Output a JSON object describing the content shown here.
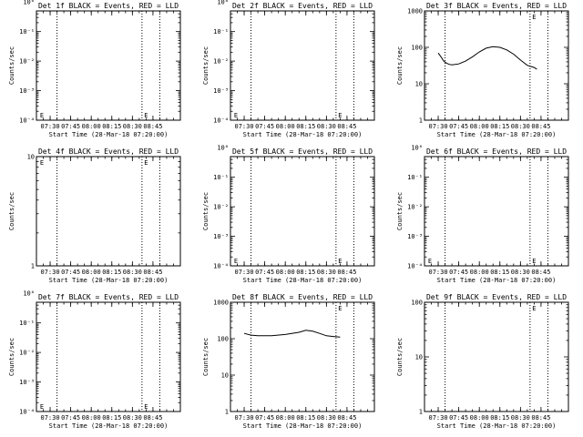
{
  "chart_data": [
    {
      "type": "line",
      "title": "Det 1f BLACK = Events, RED = LLD",
      "xlabel": "Start Time (28-Mar-18 07:20:00)",
      "ylabel": "Counts/sec",
      "scale": "log",
      "ylim": [
        0.5,
        0.0001
      ],
      "yticks": [
        {
          "v": 0.0001,
          "label": "10⁻⁴"
        },
        {
          "v": 0.001,
          "label": "10⁻³"
        },
        {
          "v": 0.01,
          "label": "10⁻²"
        },
        {
          "v": 0.1,
          "label": "10⁻¹"
        },
        {
          "v": 1,
          "label": "10⁰"
        }
      ],
      "xticks": [
        "07:30",
        "07:45",
        "08:00",
        "08:15",
        "08:30",
        "08:45"
      ],
      "xlim": [
        0,
        105
      ],
      "xtick_values": [
        10,
        25,
        40,
        55,
        70,
        85
      ],
      "dotted_lines": [
        15,
        77,
        90
      ],
      "markers": [
        {
          "x": 4,
          "label": "E"
        },
        {
          "x": 80,
          "label": "E"
        }
      ],
      "series": []
    },
    {
      "type": "line",
      "title": "Det 2f BLACK = Events, RED = LLD",
      "xlabel": "Start Time (28-Mar-18 07:20:00)",
      "ylabel": "Counts/sec",
      "scale": "log",
      "ylim": [
        0.5,
        0.0001
      ],
      "yticks": [
        {
          "v": 0.0001,
          "label": "10⁻⁴"
        },
        {
          "v": 0.001,
          "label": "10⁻³"
        },
        {
          "v": 0.01,
          "label": "10⁻²"
        },
        {
          "v": 0.1,
          "label": "10⁻¹"
        },
        {
          "v": 1,
          "label": "10⁰"
        }
      ],
      "xticks": [
        "07:30",
        "07:45",
        "08:00",
        "08:15",
        "08:30",
        "08:45"
      ],
      "xlim": [
        0,
        105
      ],
      "xtick_values": [
        10,
        25,
        40,
        55,
        70,
        85
      ],
      "dotted_lines": [
        15,
        77,
        90
      ],
      "markers": [
        {
          "x": 4,
          "label": "E"
        },
        {
          "x": 80,
          "label": "E"
        }
      ],
      "series": []
    },
    {
      "type": "line",
      "title": "Det 3f BLACK = Events, RED = LLD",
      "xlabel": "Start Time (28-Mar-18 07:20:00)",
      "ylabel": "Counts/sec",
      "scale": "log",
      "ylim": [
        1,
        1000
      ],
      "yticks": [
        {
          "v": 1000,
          "label": "1000"
        },
        {
          "v": 100,
          "label": "100"
        },
        {
          "v": 10,
          "label": "10"
        },
        {
          "v": 1,
          "label": "1"
        }
      ],
      "xticks": [
        "07:30",
        "07:45",
        "08:00",
        "08:15",
        "08:30",
        "08:45"
      ],
      "xlim": [
        0,
        105
      ],
      "xtick_values": [
        10,
        25,
        40,
        55,
        70,
        85
      ],
      "dotted_lines": [
        15,
        77,
        90
      ],
      "markers": [
        {
          "x": 80,
          "label": "E"
        }
      ],
      "series": [
        {
          "x": [
            10,
            12,
            14,
            16,
            18,
            20,
            25,
            30,
            35,
            40,
            45,
            50,
            55,
            60,
            65,
            70,
            75,
            80,
            82
          ],
          "y": [
            70,
            55,
            42,
            37,
            34,
            33,
            35,
            42,
            55,
            75,
            95,
            105,
            100,
            85,
            65,
            45,
            32,
            28,
            25
          ]
        }
      ]
    },
    {
      "type": "line",
      "title": "Det 4f BLACK = Events, RED = LLD",
      "xlabel": "Start Time (28-Mar-18 07:20:00)",
      "ylabel": "Counts/sec",
      "scale": "log",
      "ylim": [
        1,
        10
      ],
      "yticks": [
        {
          "v": 10,
          "label": "10"
        },
        {
          "v": 1,
          "label": "1"
        }
      ],
      "xticks": [
        "07:30",
        "07:45",
        "08:00",
        "08:15",
        "08:30",
        "08:45"
      ],
      "xlim": [
        0,
        105
      ],
      "xtick_values": [
        10,
        25,
        40,
        55,
        70,
        85
      ],
      "dotted_lines": [
        15,
        77,
        90
      ],
      "markers": [
        {
          "x": 4,
          "label": "E"
        },
        {
          "x": 80,
          "label": "E"
        }
      ],
      "series": []
    },
    {
      "type": "line",
      "title": "Det 5f BLACK = Events, RED = LLD",
      "xlabel": "Start Time (28-Mar-18 07:20:00)",
      "ylabel": "Counts/sec",
      "scale": "log",
      "ylim": [
        0.5,
        0.0001
      ],
      "yticks": [
        {
          "v": 0.0001,
          "label": "10⁻⁴"
        },
        {
          "v": 0.001,
          "label": "10⁻³"
        },
        {
          "v": 0.01,
          "label": "10⁻²"
        },
        {
          "v": 0.1,
          "label": "10⁻¹"
        },
        {
          "v": 1,
          "label": "10⁰"
        }
      ],
      "xticks": [
        "07:30",
        "07:45",
        "08:00",
        "08:15",
        "08:30",
        "08:45"
      ],
      "xlim": [
        0,
        105
      ],
      "xtick_values": [
        10,
        25,
        40,
        55,
        70,
        85
      ],
      "dotted_lines": [
        15,
        77,
        90
      ],
      "markers": [
        {
          "x": 4,
          "label": "E"
        },
        {
          "x": 80,
          "label": "E"
        }
      ],
      "series": []
    },
    {
      "type": "line",
      "title": "Det 6f BLACK = Events, RED = LLD",
      "xlabel": "Start Time (28-Mar-18 07:20:00)",
      "ylabel": "Counts/sec",
      "scale": "log",
      "ylim": [
        0.5,
        0.0001
      ],
      "yticks": [
        {
          "v": 0.0001,
          "label": "10⁻⁴"
        },
        {
          "v": 0.001,
          "label": "10⁻³"
        },
        {
          "v": 0.01,
          "label": "10⁻²"
        },
        {
          "v": 0.1,
          "label": "10⁻¹"
        },
        {
          "v": 1,
          "label": "10⁰"
        }
      ],
      "xticks": [
        "07:30",
        "07:45",
        "08:00",
        "08:15",
        "08:30",
        "08:45"
      ],
      "xlim": [
        0,
        105
      ],
      "xtick_values": [
        10,
        25,
        40,
        55,
        70,
        85
      ],
      "dotted_lines": [
        15,
        77,
        90
      ],
      "markers": [
        {
          "x": 4,
          "label": "E"
        },
        {
          "x": 80,
          "label": "E"
        }
      ],
      "series": []
    },
    {
      "type": "line",
      "title": "Det 7f BLACK = Events, RED = LLD",
      "xlabel": "Start Time (28-Mar-18 07:20:00)",
      "ylabel": "Counts/sec",
      "scale": "log",
      "ylim": [
        0.5,
        0.0001
      ],
      "yticks": [
        {
          "v": 0.0001,
          "label": "10⁻⁴"
        },
        {
          "v": 0.001,
          "label": "10⁻³"
        },
        {
          "v": 0.01,
          "label": "10⁻²"
        },
        {
          "v": 0.1,
          "label": "10⁻¹"
        },
        {
          "v": 1,
          "label": "10⁰"
        }
      ],
      "xticks": [
        "07:30",
        "07:45",
        "08:00",
        "08:15",
        "08:30",
        "08:45"
      ],
      "xlim": [
        0,
        105
      ],
      "xtick_values": [
        10,
        25,
        40,
        55,
        70,
        85
      ],
      "dotted_lines": [
        15,
        77,
        90
      ],
      "markers": [
        {
          "x": 4,
          "label": "E"
        },
        {
          "x": 80,
          "label": "E"
        }
      ],
      "series": []
    },
    {
      "type": "line",
      "title": "Det 8f BLACK = Events, RED = LLD",
      "xlabel": "Start Time (28-Mar-18 07:20:00)",
      "ylabel": "Counts/sec",
      "scale": "log",
      "ylim": [
        1,
        1000
      ],
      "yticks": [
        {
          "v": 1000,
          "label": "1000"
        },
        {
          "v": 100,
          "label": "100"
        },
        {
          "v": 10,
          "label": "10"
        },
        {
          "v": 1,
          "label": "1"
        }
      ],
      "xticks": [
        "07:30",
        "07:45",
        "08:00",
        "08:15",
        "08:30",
        "08:45"
      ],
      "xlim": [
        0,
        105
      ],
      "xtick_values": [
        10,
        25,
        40,
        55,
        70,
        85
      ],
      "dotted_lines": [
        15,
        77,
        90
      ],
      "markers": [
        {
          "x": 80,
          "label": "E"
        }
      ],
      "series": [
        {
          "x": [
            10,
            15,
            20,
            30,
            40,
            50,
            55,
            60,
            65,
            70,
            75,
            80
          ],
          "y": [
            140,
            125,
            120,
            120,
            130,
            150,
            170,
            160,
            140,
            120,
            115,
            110
          ]
        }
      ]
    },
    {
      "type": "line",
      "title": "Det 9f BLACK = Events, RED = LLD",
      "xlabel": "Start Time (28-Mar-18 07:20:00)",
      "ylabel": "Counts/sec",
      "scale": "log",
      "ylim": [
        1,
        100
      ],
      "yticks": [
        {
          "v": 100,
          "label": "100"
        },
        {
          "v": 10,
          "label": "10"
        },
        {
          "v": 1,
          "label": "1"
        }
      ],
      "xticks": [
        "07:30",
        "07:45",
        "08:00",
        "08:15",
        "08:30",
        "08:45"
      ],
      "xlim": [
        0,
        105
      ],
      "xtick_values": [
        10,
        25,
        40,
        55,
        70,
        85
      ],
      "dotted_lines": [
        15,
        77,
        90
      ],
      "markers": [
        {
          "x": 80,
          "label": "E"
        }
      ],
      "series": []
    }
  ]
}
